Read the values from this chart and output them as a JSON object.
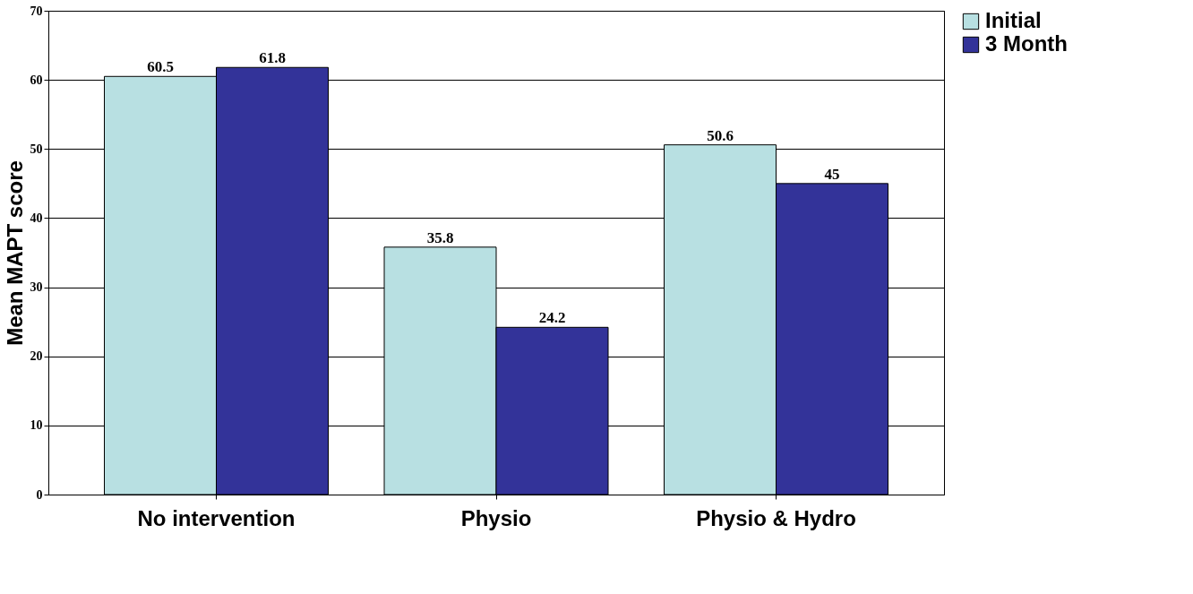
{
  "chart_data": {
    "type": "bar",
    "ylabel": "Mean MAPT score",
    "categories": [
      "No intervention",
      "Physio",
      "Physio & Hydro"
    ],
    "series": [
      {
        "name": "Initial",
        "color": "#b8e0e2",
        "values": [
          60.5,
          35.8,
          50.6
        ]
      },
      {
        "name": "3 Month",
        "color": "#333399",
        "values": [
          61.8,
          24.2,
          45
        ]
      }
    ],
    "ylim": [
      0,
      70
    ],
    "yticks": [
      0,
      10,
      20,
      30,
      40,
      50,
      60,
      70
    ],
    "grid": "y",
    "legend": "right",
    "data_labels": true
  }
}
